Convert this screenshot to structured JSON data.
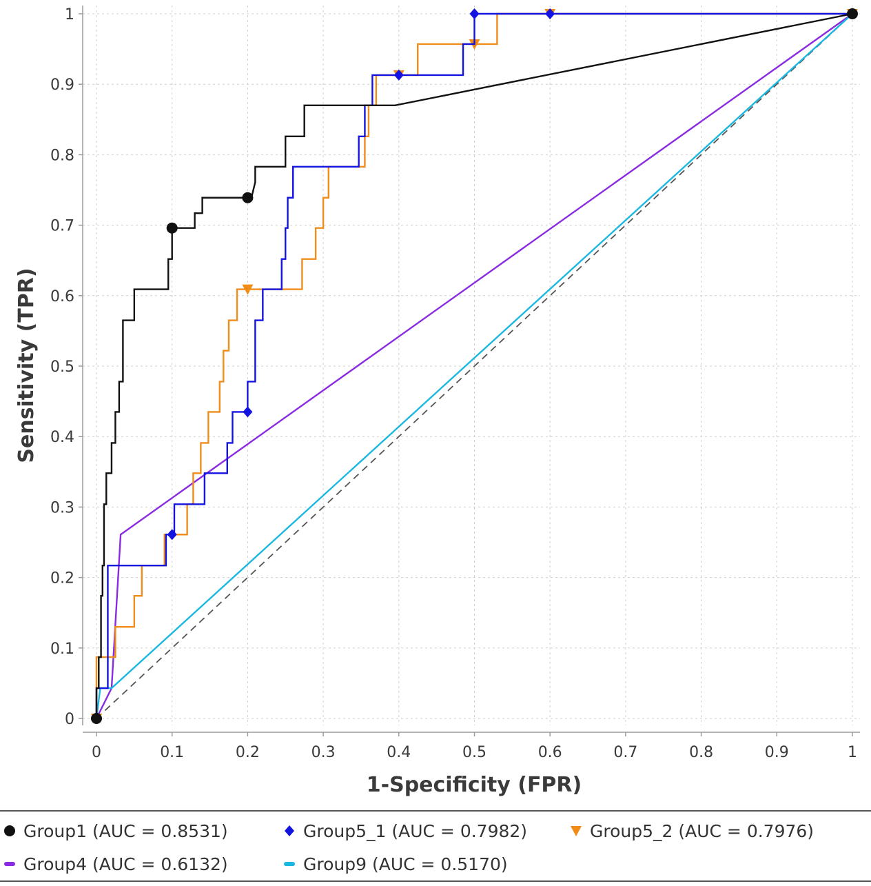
{
  "chart_data": {
    "type": "line",
    "xlabel": "1-Specificity (FPR)",
    "ylabel": "Sensitivity (TPR)",
    "xlim": [
      0,
      1
    ],
    "ylim": [
      0,
      1
    ],
    "x_ticks": [
      "0",
      "0.1",
      "0.2",
      "0.3",
      "0.4",
      "0.5",
      "0.6",
      "0.7",
      "0.8",
      "0.9",
      "1"
    ],
    "y_ticks": [
      "0",
      "0.1",
      "0.2",
      "0.3",
      "0.4",
      "0.5",
      "0.6",
      "0.7",
      "0.8",
      "0.9",
      "1"
    ],
    "grid": true,
    "legend_position": "bottom",
    "reference_line": {
      "style": "dashed",
      "color": "#555555",
      "points": [
        [
          0,
          0
        ],
        [
          1,
          1
        ]
      ]
    },
    "series": [
      {
        "name": "Group1 (AUC = 0.8531)",
        "color": "#111111",
        "marker": "circle",
        "marker_points": [
          [
            0,
            0
          ],
          [
            0.1,
            0.696
          ],
          [
            0.2,
            0.739
          ],
          [
            1,
            1
          ]
        ],
        "points": [
          [
            0,
            0
          ],
          [
            0,
            0.043
          ],
          [
            0.003,
            0.043
          ],
          [
            0.003,
            0.087
          ],
          [
            0.006,
            0.087
          ],
          [
            0.006,
            0.174
          ],
          [
            0.008,
            0.174
          ],
          [
            0.008,
            0.217
          ],
          [
            0.01,
            0.217
          ],
          [
            0.01,
            0.304
          ],
          [
            0.013,
            0.304
          ],
          [
            0.013,
            0.348
          ],
          [
            0.02,
            0.348
          ],
          [
            0.02,
            0.391
          ],
          [
            0.025,
            0.391
          ],
          [
            0.025,
            0.435
          ],
          [
            0.03,
            0.435
          ],
          [
            0.03,
            0.478
          ],
          [
            0.035,
            0.478
          ],
          [
            0.035,
            0.565
          ],
          [
            0.05,
            0.565
          ],
          [
            0.05,
            0.609
          ],
          [
            0.095,
            0.609
          ],
          [
            0.095,
            0.652
          ],
          [
            0.1,
            0.652
          ],
          [
            0.1,
            0.696
          ],
          [
            0.13,
            0.696
          ],
          [
            0.13,
            0.717
          ],
          [
            0.14,
            0.717
          ],
          [
            0.14,
            0.739
          ],
          [
            0.205,
            0.739
          ],
          [
            0.21,
            0.761
          ],
          [
            0.21,
            0.783
          ],
          [
            0.25,
            0.783
          ],
          [
            0.25,
            0.826
          ],
          [
            0.275,
            0.826
          ],
          [
            0.275,
            0.87
          ],
          [
            0.395,
            0.87
          ],
          [
            1,
            1
          ]
        ]
      },
      {
        "name": "Group5_1 (AUC = 0.7982)",
        "color": "#1414e0",
        "marker": "diamond",
        "marker_points": [
          [
            0.1,
            0.261
          ],
          [
            0.2,
            0.435
          ],
          [
            0.4,
            0.913
          ],
          [
            0.5,
            1
          ],
          [
            0.6,
            1
          ]
        ],
        "points": [
          [
            0,
            0
          ],
          [
            0,
            0.043
          ],
          [
            0.015,
            0.043
          ],
          [
            0.015,
            0.217
          ],
          [
            0.092,
            0.217
          ],
          [
            0.092,
            0.261
          ],
          [
            0.103,
            0.261
          ],
          [
            0.103,
            0.304
          ],
          [
            0.143,
            0.304
          ],
          [
            0.143,
            0.348
          ],
          [
            0.173,
            0.348
          ],
          [
            0.173,
            0.391
          ],
          [
            0.18,
            0.391
          ],
          [
            0.18,
            0.435
          ],
          [
            0.2,
            0.435
          ],
          [
            0.2,
            0.478
          ],
          [
            0.21,
            0.478
          ],
          [
            0.21,
            0.565
          ],
          [
            0.22,
            0.565
          ],
          [
            0.22,
            0.609
          ],
          [
            0.245,
            0.609
          ],
          [
            0.245,
            0.652
          ],
          [
            0.25,
            0.652
          ],
          [
            0.25,
            0.696
          ],
          [
            0.253,
            0.696
          ],
          [
            0.253,
            0.739
          ],
          [
            0.26,
            0.739
          ],
          [
            0.26,
            0.783
          ],
          [
            0.347,
            0.783
          ],
          [
            0.347,
            0.826
          ],
          [
            0.355,
            0.826
          ],
          [
            0.355,
            0.87
          ],
          [
            0.365,
            0.87
          ],
          [
            0.365,
            0.913
          ],
          [
            0.485,
            0.913
          ],
          [
            0.485,
            0.957
          ],
          [
            0.5,
            0.957
          ],
          [
            0.5,
            1
          ],
          [
            1,
            1
          ]
        ]
      },
      {
        "name": "Group5_2 (AUC = 0.7976)",
        "color": "#f08c1a",
        "marker": "triangle-down",
        "marker_points": [
          [
            0,
            0
          ],
          [
            0.2,
            0.609
          ],
          [
            0.4,
            0.913
          ],
          [
            0.5,
            0.957
          ],
          [
            0.6,
            1
          ],
          [
            1,
            1
          ]
        ],
        "points": [
          [
            0,
            0
          ],
          [
            0,
            0.087
          ],
          [
            0.025,
            0.087
          ],
          [
            0.025,
            0.13
          ],
          [
            0.05,
            0.13
          ],
          [
            0.05,
            0.174
          ],
          [
            0.06,
            0.174
          ],
          [
            0.06,
            0.217
          ],
          [
            0.09,
            0.217
          ],
          [
            0.09,
            0.261
          ],
          [
            0.12,
            0.261
          ],
          [
            0.12,
            0.304
          ],
          [
            0.128,
            0.304
          ],
          [
            0.128,
            0.348
          ],
          [
            0.138,
            0.348
          ],
          [
            0.138,
            0.391
          ],
          [
            0.148,
            0.391
          ],
          [
            0.148,
            0.435
          ],
          [
            0.163,
            0.435
          ],
          [
            0.163,
            0.478
          ],
          [
            0.168,
            0.478
          ],
          [
            0.168,
            0.522
          ],
          [
            0.175,
            0.522
          ],
          [
            0.175,
            0.565
          ],
          [
            0.186,
            0.565
          ],
          [
            0.186,
            0.609
          ],
          [
            0.272,
            0.609
          ],
          [
            0.272,
            0.652
          ],
          [
            0.29,
            0.652
          ],
          [
            0.29,
            0.696
          ],
          [
            0.3,
            0.696
          ],
          [
            0.3,
            0.739
          ],
          [
            0.307,
            0.739
          ],
          [
            0.307,
            0.783
          ],
          [
            0.355,
            0.783
          ],
          [
            0.355,
            0.826
          ],
          [
            0.36,
            0.826
          ],
          [
            0.36,
            0.87
          ],
          [
            0.37,
            0.87
          ],
          [
            0.37,
            0.913
          ],
          [
            0.425,
            0.913
          ],
          [
            0.425,
            0.957
          ],
          [
            0.485,
            0.957
          ],
          [
            0.485,
            0.957
          ],
          [
            0.53,
            0.957
          ],
          [
            0.53,
            1
          ],
          [
            1,
            1
          ]
        ]
      },
      {
        "name": "Group4 (AUC = 0.6132)",
        "color": "#8a2be2",
        "marker": "dash",
        "marker_points": [],
        "points": [
          [
            0,
            0
          ],
          [
            0.02,
            0.043
          ],
          [
            0.032,
            0.261
          ],
          [
            1,
            1
          ]
        ]
      },
      {
        "name": "Group9 (AUC = 0.5170)",
        "color": "#1ab8e0",
        "marker": "dash",
        "marker_points": [],
        "points": [
          [
            0,
            0
          ],
          [
            0.005,
            0.043
          ],
          [
            0.02,
            0.043
          ],
          [
            1,
            1
          ]
        ]
      }
    ]
  }
}
